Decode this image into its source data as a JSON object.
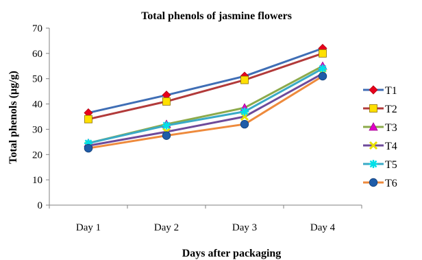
{
  "chart_data": {
    "type": "line",
    "title": "Total phenols of jasmine flowers",
    "xlabel": "Days after packaging",
    "ylabel": "Total phenols (µg/g)",
    "categories": [
      "Day 1",
      "Day 2",
      "Day 3",
      "Day 4"
    ],
    "ylim": [
      0,
      70
    ],
    "yticks": [
      0,
      10,
      20,
      30,
      40,
      50,
      60,
      70
    ],
    "legend_position": "right",
    "grid": false,
    "series": [
      {
        "name": "T1",
        "color": "#3F6EB5",
        "marker": "diamond",
        "marker_color": "#E8001C",
        "values": [
          36.5,
          43.5,
          51,
          62
        ]
      },
      {
        "name": "T2",
        "color": "#B23A3A",
        "marker": "square",
        "marker_color": "#FFE000",
        "values": [
          34,
          41,
          49.5,
          60
        ]
      },
      {
        "name": "T3",
        "color": "#8CAA4B",
        "marker": "triangle",
        "marker_color": "#E000C8",
        "values": [
          24.5,
          32,
          38.5,
          55
        ]
      },
      {
        "name": "T4",
        "color": "#6E4A9A",
        "marker": "x",
        "marker_color": "#E8E000",
        "values": [
          23.5,
          29,
          35,
          52
        ]
      },
      {
        "name": "T5",
        "color": "#3AAAC6",
        "marker": "asterisk",
        "marker_color": "#00E0E8",
        "values": [
          24.5,
          31.5,
          37,
          54
        ]
      },
      {
        "name": "T6",
        "color": "#EE8A3C",
        "marker": "circle",
        "marker_color": "#1F5CA8",
        "values": [
          22.5,
          27.5,
          32,
          51
        ]
      }
    ]
  }
}
